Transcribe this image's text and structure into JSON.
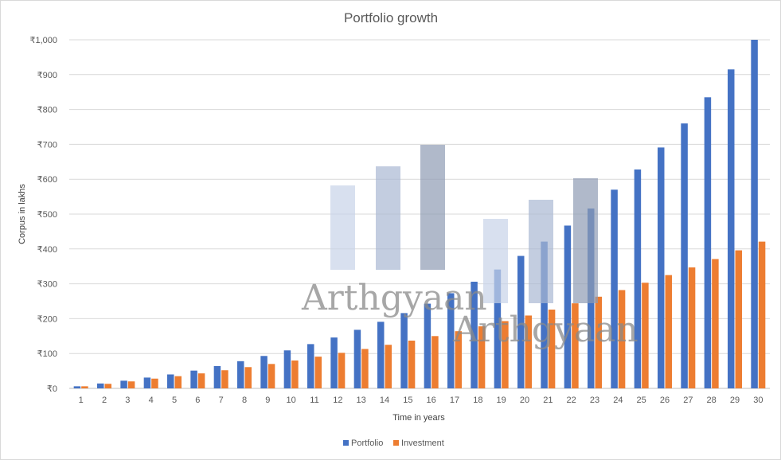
{
  "chart_data": {
    "type": "bar",
    "title": "Portfolio growth",
    "xlabel": "Time in years",
    "ylabel": "Corpus in lakhs",
    "ylim": [
      0,
      1000
    ],
    "ytick_step": 100,
    "ytick_labels": [
      "₹0",
      "₹100",
      "₹200",
      "₹300",
      "₹400",
      "₹500",
      "₹600",
      "₹700",
      "₹800",
      "₹900",
      "₹1,000"
    ],
    "categories": [
      "1",
      "2",
      "3",
      "4",
      "5",
      "6",
      "7",
      "8",
      "9",
      "10",
      "11",
      "12",
      "13",
      "14",
      "15",
      "16",
      "17",
      "18",
      "19",
      "20",
      "21",
      "22",
      "23",
      "24",
      "25",
      "26",
      "27",
      "28",
      "29",
      "30"
    ],
    "series": [
      {
        "name": "Portfolio",
        "color": "#4472c4",
        "values": [
          6,
          14,
          22,
          31,
          40,
          51,
          64,
          78,
          93,
          109,
          127,
          146,
          168,
          191,
          216,
          243,
          273,
          306,
          341,
          380,
          421,
          467,
          516,
          570,
          628,
          691,
          760,
          835,
          915,
          1000
        ]
      },
      {
        "name": "Investment",
        "color": "#ed7d31",
        "values": [
          6,
          13,
          20,
          28,
          35,
          43,
          52,
          61,
          70,
          80,
          91,
          102,
          113,
          125,
          137,
          150,
          164,
          178,
          193,
          209,
          226,
          244,
          263,
          282,
          303,
          325,
          347,
          371,
          396,
          421
        ]
      }
    ],
    "gridlines": true,
    "legend_position": "bottom"
  },
  "watermark": {
    "text": "Arthgyaan"
  }
}
